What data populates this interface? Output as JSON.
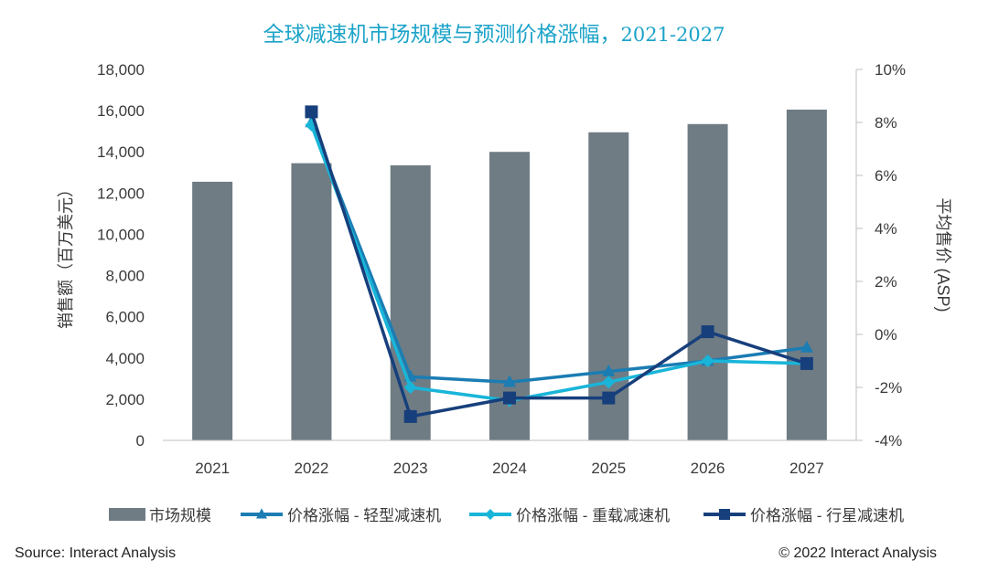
{
  "title": {
    "main": "全球减速机市场规模与预测价格涨幅，",
    "years": "2021-2027"
  },
  "source": "Source: Interact Analysis",
  "copyright": "© 2022 Interact Analysis",
  "chart_data": {
    "type": "bar",
    "categories": [
      "2021",
      "2022",
      "2023",
      "2024",
      "2025",
      "2026",
      "2027"
    ],
    "bars": {
      "name": "市场规模",
      "color": "#6f7c84",
      "values": [
        12550,
        13450,
        13350,
        14000,
        14950,
        15350,
        16050
      ]
    },
    "lines": [
      {
        "name": "价格涨幅 - 轻型减速机",
        "color": "#1b7db3",
        "marker": "triangle",
        "values": [
          null,
          8.0,
          -1.6,
          -1.8,
          -1.4,
          -1.0,
          -0.5
        ]
      },
      {
        "name": "价格涨幅 - 重载减速机",
        "color": "#19b5d9",
        "marker": "diamond",
        "values": [
          null,
          7.9,
          -2.0,
          -2.5,
          -1.8,
          -1.0,
          -1.1
        ]
      },
      {
        "name": "价格涨幅 - 行星减速机",
        "color": "#173f7c",
        "marker": "square",
        "values": [
          null,
          8.4,
          -3.1,
          -2.4,
          -2.4,
          0.1,
          -1.1
        ]
      }
    ],
    "ylabel": "销售额（百万美元）",
    "y2label": "平均售价 (ASP)",
    "ylim": [
      0,
      18000
    ],
    "yticks": [
      "0",
      "2,000",
      "4,000",
      "6,000",
      "8,000",
      "10,000",
      "12,000",
      "14,000",
      "16,000",
      "18,000"
    ],
    "y2lim": [
      -4,
      10
    ],
    "y2ticks": [
      "-4%",
      "-2%",
      "0%",
      "2%",
      "4%",
      "6%",
      "8%",
      "10%"
    ],
    "grid": false,
    "legend_position": "bottom"
  }
}
